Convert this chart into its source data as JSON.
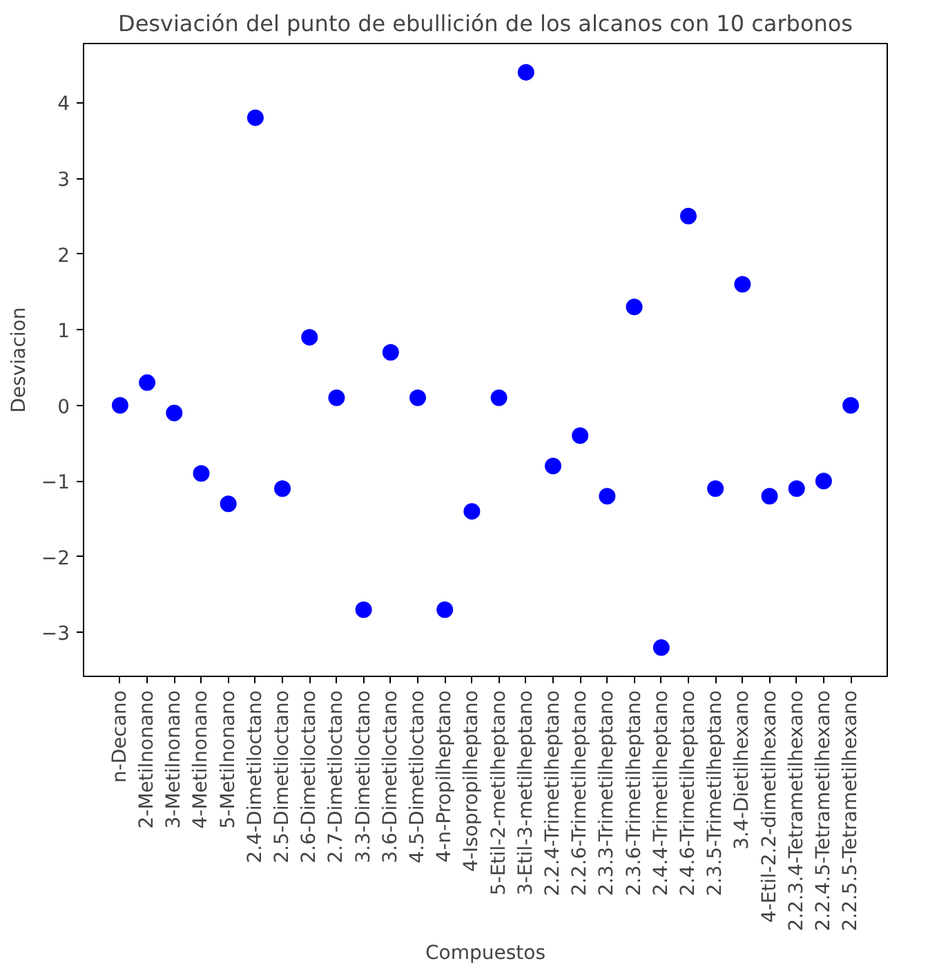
{
  "chart_data": {
    "type": "scatter",
    "title": "Desviación del punto de ebullición de los alcanos con 10 carbonos",
    "xlabel": "Compuestos",
    "ylabel": "Desviacion",
    "categories": [
      "n-Decano",
      "2-Metilnonano",
      "3-Metilnonano",
      "4-Metilnonano",
      "5-Metilnonano",
      "2.4-Dimetiloctano",
      "2.5-Dimetiloctano",
      "2.6-Dimetiloctano",
      "2.7-Dimetiloctano",
      "3.3-Dimetiloctano",
      "3.6-Dimetiloctano",
      "4.5-Dimetiloctano",
      "4-n-Propilheptano",
      "4-Isopropilheptano",
      "5-Etil-2-metilheptano",
      "3-Etil-3-metilheptano",
      "2.2.4-Trimetilheptano",
      "2.2.6-Trimetilheptano",
      "2.3.3-Trimetilheptano",
      "2.3.6-Trimetilheptano",
      "2.4.4-Trimetilheptano",
      "2.4.6-Trimetilheptano",
      "2.3.5-Trimetilheptano",
      "3.4-Dietilhexano",
      "4-Etil-2.2-dimetilhexano",
      "2.2.3.4-Tetrametilhexano",
      "2.2.4.5-Tetrametilhexano",
      "2.2.5.5-Tetrametilhexano"
    ],
    "series": [
      {
        "color": "#0000ff",
        "values": [
          0,
          0.3,
          -0.1,
          -0.9,
          -1.3,
          3.8,
          -1.1,
          0.9,
          0.1,
          -2.7,
          0.7,
          0.1,
          -2.7,
          -1.4,
          0.1,
          4.4,
          -0.8,
          -0.4,
          -1.2,
          1.3,
          -3.2,
          2.5,
          -1.1,
          1.6,
          -1.2,
          -1.1,
          -1.0,
          0.0
        ]
      }
    ],
    "ylim": [
      -3.58,
      4.78
    ],
    "yticks": [
      -3,
      -2,
      -1,
      0,
      1,
      2,
      3,
      4
    ],
    "marker": "circle"
  }
}
